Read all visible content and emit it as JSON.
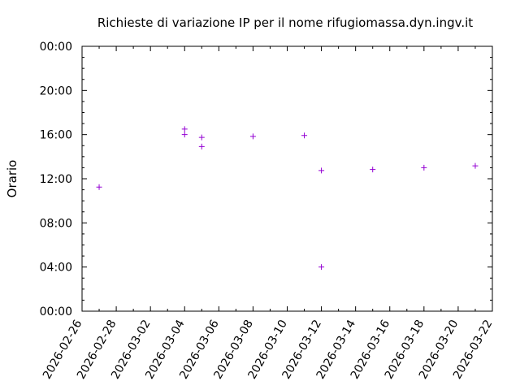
{
  "chart_data": {
    "type": "scatter",
    "title": "Richieste di variazione IP per il nome rifugiomassa.dyn.ingv.it",
    "xlabel": "",
    "ylabel": "Orario",
    "x_ticks": [
      "2026-02-26",
      "2026-02-28",
      "2026-03-02",
      "2026-03-04",
      "2026-03-06",
      "2026-03-08",
      "2026-03-10",
      "2026-03-12",
      "2026-03-14",
      "2026-03-16",
      "2026-03-18",
      "2026-03-20",
      "2026-03-22"
    ],
    "y_ticks": [
      "00:00",
      "04:00",
      "08:00",
      "12:00",
      "16:00",
      "20:00",
      "00:00"
    ],
    "xlim": [
      "2026-02-26",
      "2026-03-22"
    ],
    "ylim": [
      "00:00",
      "24:00"
    ],
    "grid": false,
    "marker": "+",
    "points": [
      {
        "x": "2026-02-27",
        "y": "11:15"
      },
      {
        "x": "2026-03-04",
        "y": "16:30"
      },
      {
        "x": "2026-03-04",
        "y": "16:00"
      },
      {
        "x": "2026-03-05",
        "y": "15:45"
      },
      {
        "x": "2026-03-05",
        "y": "14:55"
      },
      {
        "x": "2026-03-08",
        "y": "15:50"
      },
      {
        "x": "2026-03-11",
        "y": "15:55"
      },
      {
        "x": "2026-03-12",
        "y": "12:45"
      },
      {
        "x": "2026-03-12",
        "y": "04:00"
      },
      {
        "x": "2026-03-15",
        "y": "12:50"
      },
      {
        "x": "2026-03-18",
        "y": "13:00"
      },
      {
        "x": "2026-03-21",
        "y": "13:10"
      }
    ]
  },
  "colors": {
    "points": "#9400d3",
    "axes": "#000000",
    "background": "#ffffff"
  }
}
